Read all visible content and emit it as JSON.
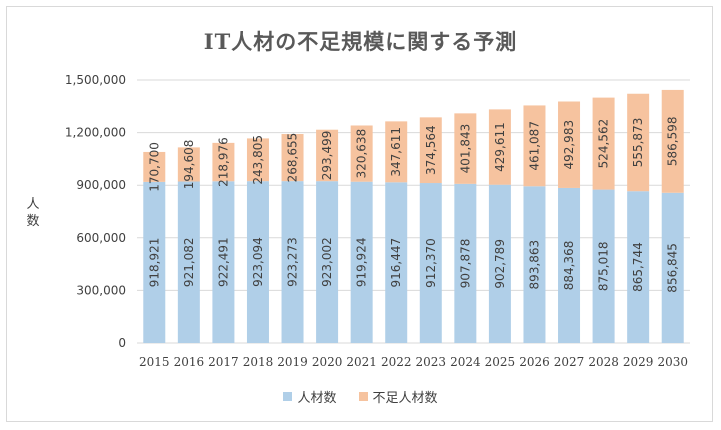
{
  "colors": {
    "series1": "#b0cfe8",
    "series2": "#f6c39f",
    "grid": "#d9d9d9",
    "text": "#404040"
  },
  "chart_data": {
    "type": "bar",
    "stacked": true,
    "title": "IT人材の不足規模に関する予測",
    "xlabel": "",
    "ylabel": "人数",
    "ylim": [
      0,
      1500000
    ],
    "yticks": [
      0,
      300000,
      600000,
      900000,
      1200000,
      1500000
    ],
    "ytick_labels": [
      "0",
      "300,000",
      "600,000",
      "900,000",
      "1,200,000",
      "1,500,000"
    ],
    "grid": true,
    "legend_position": "bottom",
    "categories": [
      "2015",
      "2016",
      "2017",
      "2018",
      "2019",
      "2020",
      "2021",
      "2022",
      "2023",
      "2024",
      "2025",
      "2026",
      "2027",
      "2028",
      "2029",
      "2030"
    ],
    "series": [
      {
        "name": "人材数",
        "values": [
          918921,
          921082,
          922491,
          923094,
          923273,
          923002,
          919924,
          916447,
          912370,
          907878,
          902789,
          893863,
          884368,
          875018,
          865744,
          856845
        ],
        "labels": [
          "918,921",
          "921,082",
          "922,491",
          "923,094",
          "923,273",
          "923,002",
          "919,924",
          "916,447",
          "912,370",
          "907,878",
          "902,789",
          "893,863",
          "884,368",
          "875,018",
          "865,744",
          "856,845"
        ]
      },
      {
        "name": "不足人材数",
        "values": [
          170700,
          194608,
          218976,
          243805,
          268655,
          293499,
          320638,
          347611,
          374564,
          401843,
          429611,
          461087,
          492983,
          524562,
          555873,
          586598
        ],
        "labels": [
          "170,700",
          "194,608",
          "218,976",
          "243,805",
          "268,655",
          "293,499",
          "320,638",
          "347,611",
          "374,564",
          "401,843",
          "429,611",
          "461,087",
          "492,983",
          "524,562",
          "555,873",
          "586,598"
        ]
      }
    ]
  }
}
